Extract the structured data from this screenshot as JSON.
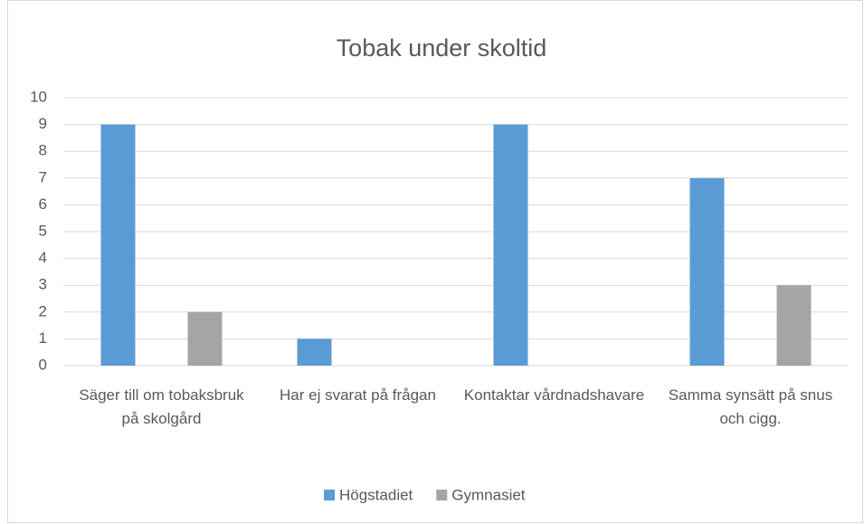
{
  "chart_data": {
    "type": "bar",
    "title": "Tobak under skoltid",
    "categories": [
      "Säger till om tobaksbruk på skolgård",
      "Har ej svarat på frågan",
      "Kontaktar vårdnadshavare",
      "Samma synsätt på snus och cigg."
    ],
    "series": [
      {
        "name": "Högstadiet",
        "color": "#5b9bd5",
        "values": [
          9,
          1,
          9,
          7
        ]
      },
      {
        "name": "Gymnasiet",
        "color": "#a5a5a5",
        "values": [
          2,
          0,
          0,
          3
        ]
      }
    ],
    "ylim": [
      0,
      10
    ],
    "yticks": [
      0,
      1,
      2,
      3,
      4,
      5,
      6,
      7,
      8,
      9,
      10
    ],
    "grid": true,
    "legend": "bottom"
  }
}
